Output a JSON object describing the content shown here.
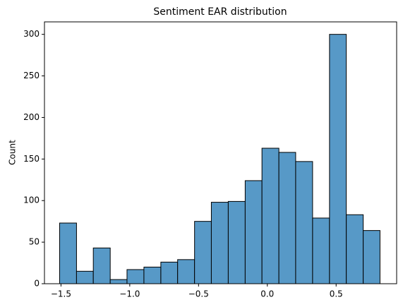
{
  "chart_data": {
    "type": "histogram",
    "title": "Sentiment EAR distribution",
    "ylabel": "Count",
    "bins": [
      -1.51,
      -1.387,
      -1.265,
      -1.142,
      -1.02,
      -0.897,
      -0.774,
      -0.652,
      -0.529,
      -0.407,
      -0.284,
      -0.161,
      -0.039,
      0.084,
      0.206,
      0.329,
      0.452,
      0.574,
      0.697,
      0.819
    ],
    "values": [
      73,
      15,
      43,
      5,
      17,
      20,
      26,
      29,
      75,
      98,
      99,
      124,
      163,
      158,
      147,
      79,
      300,
      83,
      64
    ],
    "color": "#5799c7",
    "edgecolor": "#000000",
    "xlim": [
      -1.62,
      0.94
    ],
    "xticks": [
      {
        "value": -1.5,
        "label": "−1.5"
      },
      {
        "value": -1.0,
        "label": "−1.0"
      },
      {
        "value": -0.5,
        "label": "−0.5"
      },
      {
        "value": 0.0,
        "label": "0.0"
      },
      0.5
    ],
    "ylim": [
      0,
      315
    ],
    "yticks": [
      0,
      50,
      100,
      150,
      200,
      250,
      300
    ],
    "grid": false
  }
}
